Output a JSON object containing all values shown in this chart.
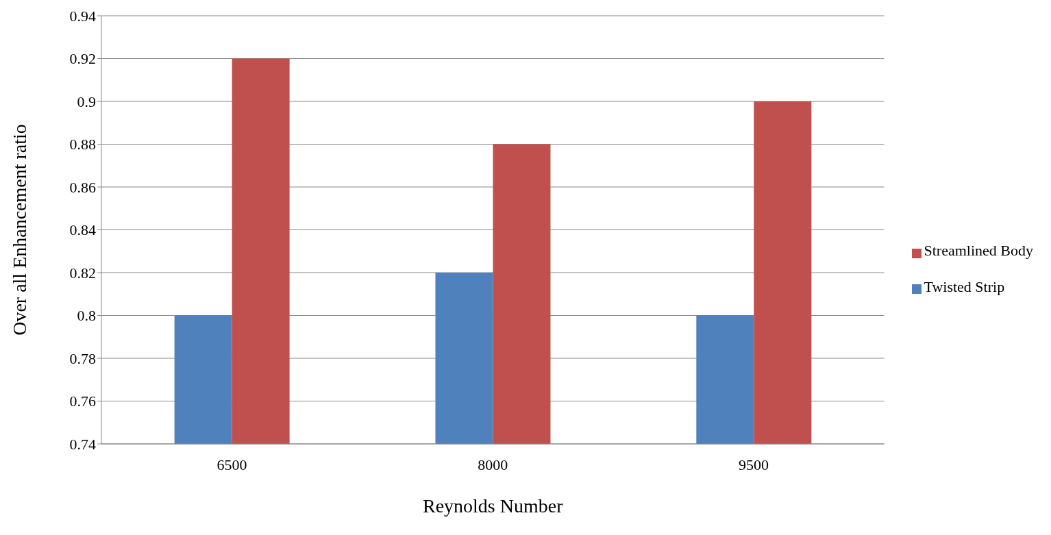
{
  "chart_data": {
    "type": "bar",
    "xlabel": "Reynolds Number",
    "ylabel": "Over all Enhancement  ratio",
    "categories": [
      "6500",
      "8000",
      "9500"
    ],
    "series": [
      {
        "name": "Twisted Strip",
        "color": "#4f81bd",
        "values": [
          0.8,
          0.82,
          0.8
        ]
      },
      {
        "name": "Streamlined  Body",
        "color": "#c0504d",
        "values": [
          0.92,
          0.88,
          0.9
        ]
      }
    ],
    "ylim": [
      0.74,
      0.94
    ],
    "yticks": [
      0.74,
      0.76,
      0.78,
      0.8,
      0.82,
      0.84,
      0.86,
      0.88,
      0.9,
      0.92,
      0.94
    ],
    "grid": "y",
    "legend": "right"
  }
}
